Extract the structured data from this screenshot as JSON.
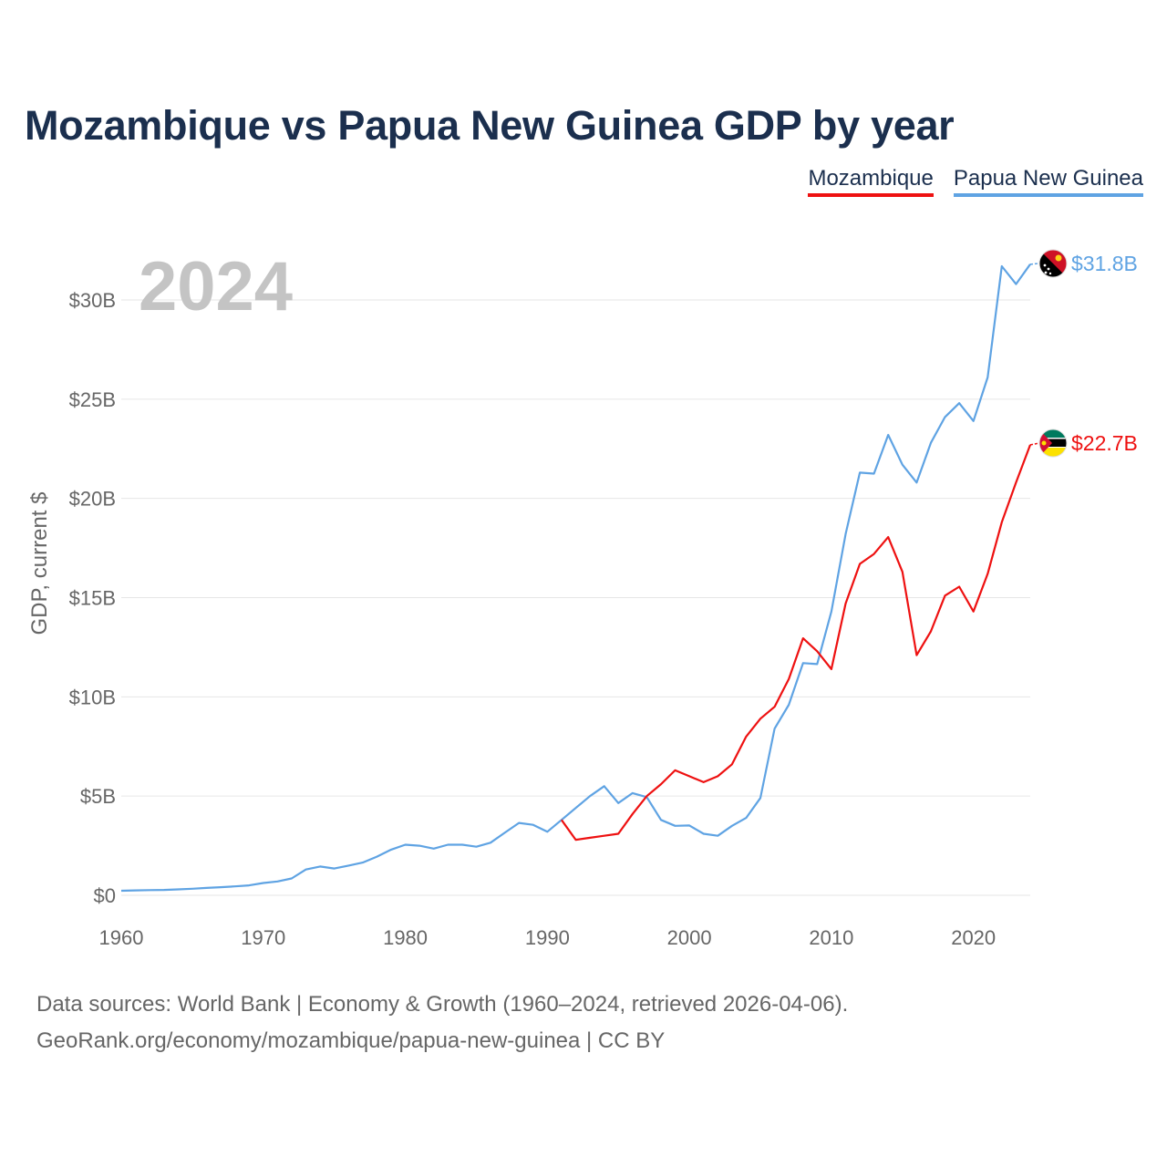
{
  "title": "Mozambique vs Papua New Guinea GDP by year",
  "legend": [
    {
      "label": "Mozambique",
      "color": "#ee1111"
    },
    {
      "label": "Papua New Guinea",
      "color": "#5fa3e3"
    }
  ],
  "year_label": "2024",
  "footer": {
    "line1": "Data sources: World Bank | Economy & Growth (1960–2024, retrieved 2026-04-06).",
    "line2": "GeoRank.org/economy/mozambique/papua-new-guinea | CC BY"
  },
  "chart_data": {
    "type": "line",
    "title": "Mozambique vs Papua New Guinea GDP by year",
    "xlabel": "",
    "ylabel": "GDP, current $",
    "xlim": [
      1960,
      2024
    ],
    "ylim": [
      0,
      32
    ],
    "x_ticks": [
      1960,
      1970,
      1980,
      1990,
      2000,
      2010,
      2020
    ],
    "y_ticks": [
      0,
      5,
      10,
      15,
      20,
      25,
      30
    ],
    "y_tick_labels": [
      "$0",
      "$5B",
      "$10B",
      "$15B",
      "$20B",
      "$25B",
      "$30B"
    ],
    "units": "billions of current US$",
    "series": [
      {
        "name": "Papua New Guinea",
        "color": "#5fa3e3",
        "end_label": "$31.8B",
        "x": [
          1960,
          1961,
          1962,
          1963,
          1964,
          1965,
          1966,
          1967,
          1968,
          1969,
          1970,
          1971,
          1972,
          1973,
          1974,
          1975,
          1976,
          1977,
          1978,
          1979,
          1980,
          1981,
          1982,
          1983,
          1984,
          1985,
          1986,
          1987,
          1988,
          1989,
          1990,
          1991,
          1992,
          1993,
          1994,
          1995,
          1996,
          1997,
          1998,
          1999,
          2000,
          2001,
          2002,
          2003,
          2004,
          2005,
          2006,
          2007,
          2008,
          2009,
          2010,
          2011,
          2012,
          2013,
          2014,
          2015,
          2016,
          2017,
          2018,
          2019,
          2020,
          2021,
          2022,
          2023,
          2024
        ],
        "values": [
          0.23,
          0.25,
          0.26,
          0.27,
          0.3,
          0.33,
          0.37,
          0.41,
          0.45,
          0.5,
          0.62,
          0.7,
          0.85,
          1.3,
          1.45,
          1.35,
          1.5,
          1.65,
          1.95,
          2.3,
          2.55,
          2.5,
          2.35,
          2.55,
          2.55,
          2.45,
          2.65,
          3.15,
          3.65,
          3.55,
          3.2,
          3.8,
          4.4,
          5.0,
          5.5,
          4.65,
          5.15,
          4.95,
          3.8,
          3.5,
          3.52,
          3.1,
          3.0,
          3.5,
          3.9,
          4.9,
          8.4,
          9.6,
          11.7,
          11.65,
          14.3,
          18.2,
          21.3,
          21.25,
          23.2,
          21.7,
          20.8,
          22.8,
          24.1,
          24.8,
          23.9,
          26.1,
          31.7,
          30.8,
          31.8
        ]
      },
      {
        "name": "Mozambique",
        "color": "#ee1111",
        "end_label": "$22.7B",
        "x": [
          1991,
          1992,
          1993,
          1994,
          1995,
          1996,
          1997,
          1998,
          1999,
          2000,
          2001,
          2002,
          2003,
          2004,
          2005,
          2006,
          2007,
          2008,
          2009,
          2010,
          2011,
          2012,
          2013,
          2014,
          2015,
          2016,
          2017,
          2018,
          2019,
          2020,
          2021,
          2022,
          2023,
          2024
        ],
        "values": [
          3.8,
          2.8,
          2.9,
          3.0,
          3.1,
          4.1,
          5.0,
          5.6,
          6.3,
          6.0,
          5.7,
          6.0,
          6.6,
          8.0,
          8.9,
          9.5,
          10.9,
          12.95,
          12.3,
          11.4,
          14.7,
          16.7,
          17.2,
          18.05,
          16.3,
          12.1,
          13.3,
          15.1,
          15.55,
          14.3,
          16.2,
          18.8,
          20.8,
          22.7
        ]
      }
    ]
  }
}
